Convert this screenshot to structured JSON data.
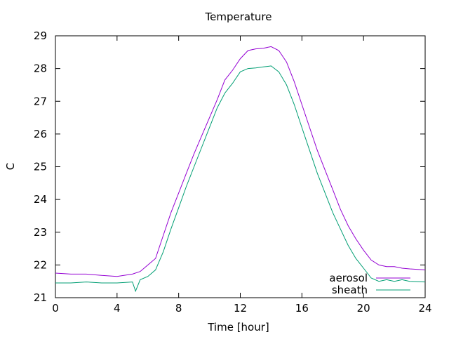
{
  "chart_data": {
    "type": "line",
    "title": "Temperature",
    "xlabel": "Time [hour]",
    "ylabel": "C",
    "xlim": [
      0,
      24
    ],
    "ylim": [
      21,
      29
    ],
    "xticks": [
      "0",
      "4",
      "8",
      "12",
      "16",
      "20",
      "24"
    ],
    "yticks": [
      "21",
      "22",
      "23",
      "24",
      "25",
      "26",
      "27",
      "28",
      "29"
    ],
    "grid": false,
    "legend_position": "bottom-right",
    "series": [
      {
        "name": "aerosol",
        "color": "#9400d3",
        "x": [
          0,
          1,
          2,
          3,
          4,
          5,
          5.5,
          6,
          6.5,
          7,
          7.5,
          8,
          8.5,
          9,
          9.5,
          10,
          10.5,
          11,
          11.5,
          12,
          12.5,
          13,
          13.5,
          14,
          14.5,
          15,
          15.5,
          16,
          16.5,
          17,
          17.5,
          18,
          18.5,
          19,
          19.5,
          20,
          20.5,
          21,
          21.5,
          22,
          22.5,
          23,
          24
        ],
        "y": [
          21.75,
          21.72,
          21.72,
          21.68,
          21.65,
          21.72,
          21.8,
          22.0,
          22.2,
          22.9,
          23.6,
          24.2,
          24.8,
          25.4,
          25.95,
          26.5,
          27.05,
          27.65,
          27.95,
          28.3,
          28.55,
          28.6,
          28.62,
          28.67,
          28.55,
          28.2,
          27.6,
          26.9,
          26.2,
          25.5,
          24.9,
          24.3,
          23.7,
          23.2,
          22.8,
          22.45,
          22.15,
          22.0,
          21.95,
          21.95,
          21.9,
          21.88,
          21.85
        ]
      },
      {
        "name": "sheath",
        "color": "#009e73",
        "x": [
          0,
          1,
          2,
          3,
          4,
          5,
          5.2,
          5.5,
          6,
          6.5,
          7,
          7.5,
          8,
          8.5,
          9,
          9.5,
          10,
          10.5,
          11,
          11.5,
          12,
          12.5,
          13,
          13.5,
          14,
          14.5,
          15,
          15.5,
          16,
          16.5,
          17,
          17.5,
          18,
          18.5,
          19,
          19.5,
          20,
          20.5,
          21,
          21.5,
          22,
          22.5,
          23,
          24
        ],
        "y": [
          21.45,
          21.45,
          21.48,
          21.45,
          21.45,
          21.48,
          21.2,
          21.55,
          21.65,
          21.85,
          22.4,
          23.1,
          23.75,
          24.4,
          25.0,
          25.6,
          26.2,
          26.8,
          27.25,
          27.55,
          27.9,
          28.0,
          28.02,
          28.05,
          28.08,
          27.9,
          27.5,
          26.9,
          26.2,
          25.5,
          24.8,
          24.2,
          23.6,
          23.1,
          22.6,
          22.2,
          21.9,
          21.6,
          21.5,
          21.55,
          21.5,
          21.55,
          21.5,
          21.48
        ]
      }
    ]
  }
}
